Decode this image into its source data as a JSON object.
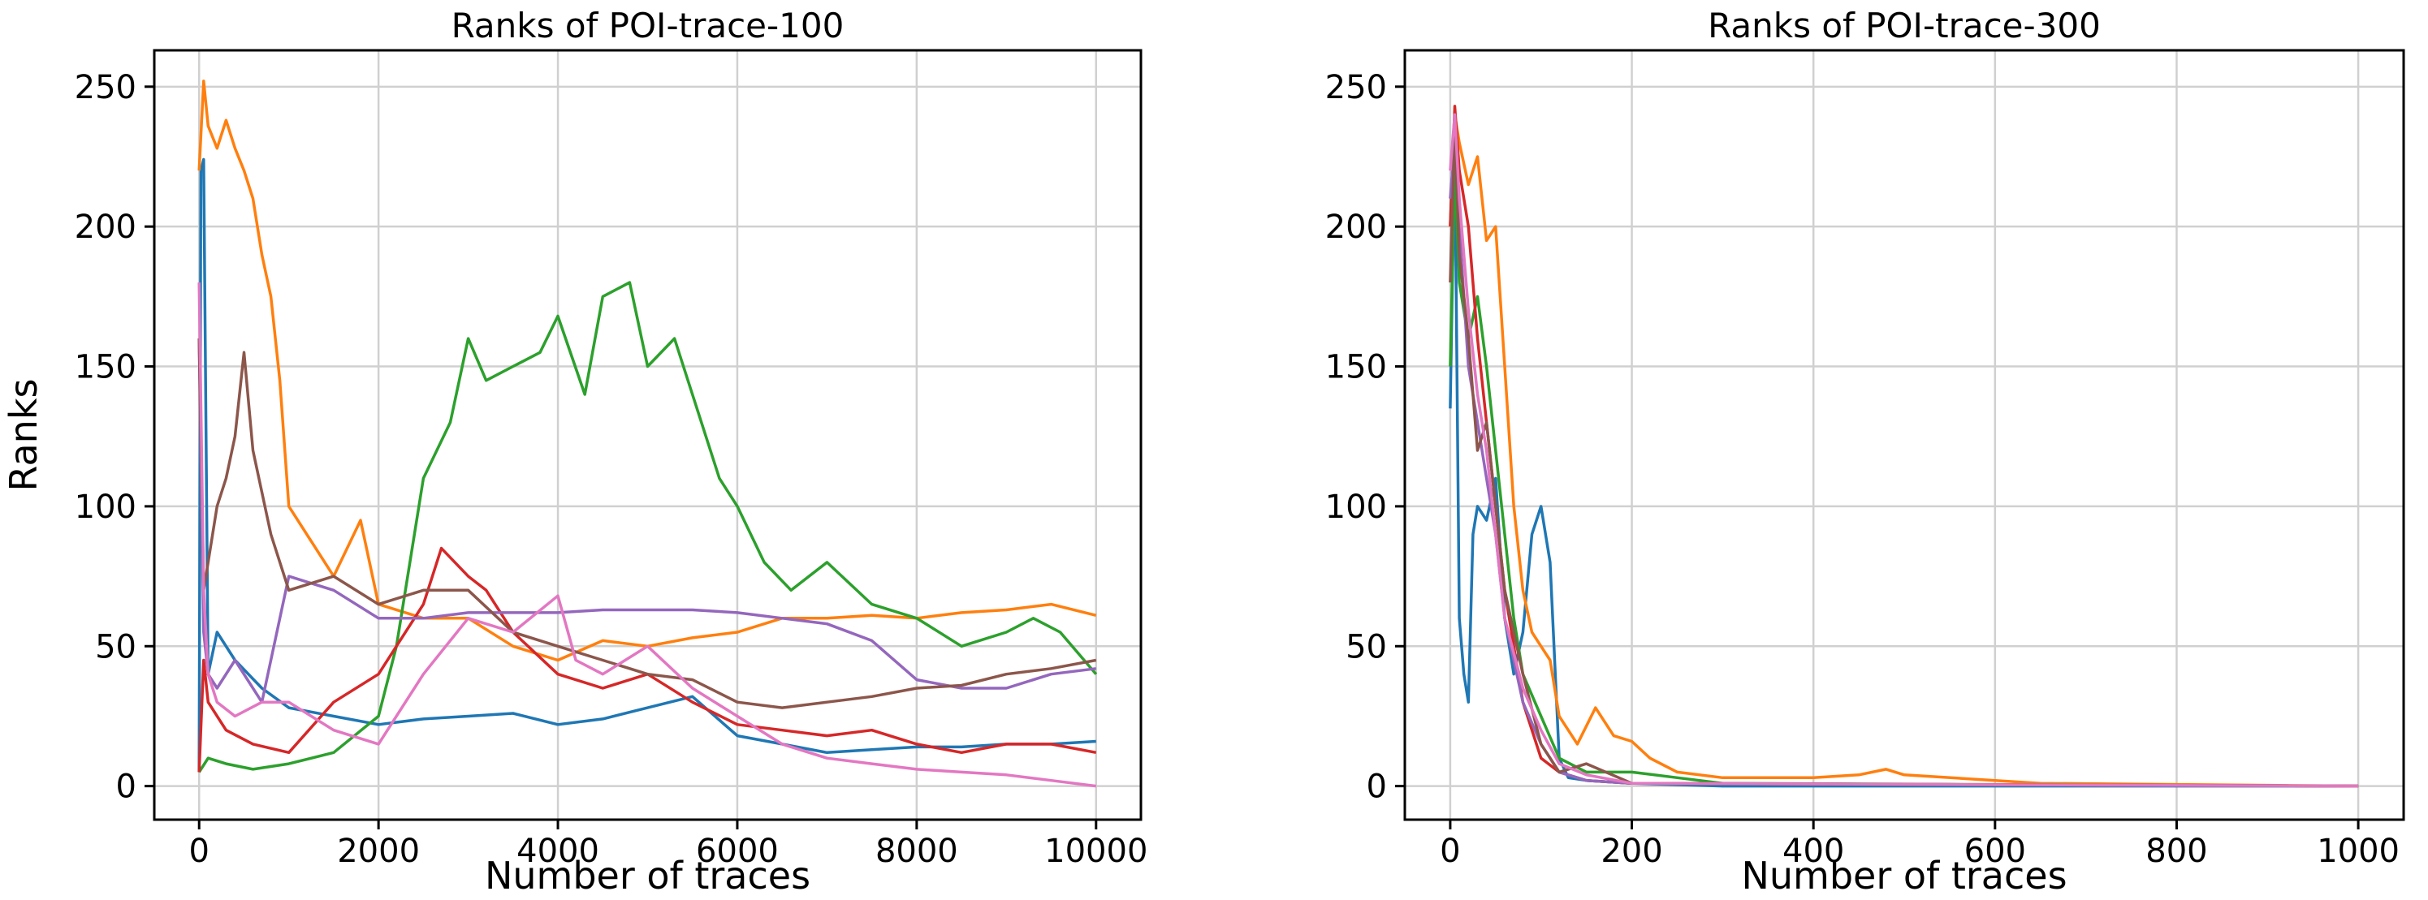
{
  "chart_data": [
    {
      "type": "line",
      "title": "Ranks of POI-trace-100",
      "xlabel": "Number of traces",
      "ylabel": "Ranks",
      "xlim": [
        -500,
        10500
      ],
      "ylim": [
        -12,
        263
      ],
      "xticks": [
        0,
        2000,
        4000,
        6000,
        8000,
        10000
      ],
      "yticks": [
        0,
        50,
        100,
        150,
        200,
        250
      ],
      "grid": true,
      "series": [
        {
          "color": "#1f77b4",
          "x": [
            0,
            20,
            50,
            100,
            200,
            400,
            700,
            1000,
            1500,
            2000,
            2500,
            3000,
            3500,
            4000,
            4500,
            5000,
            5500,
            6000,
            6500,
            7000,
            7500,
            8000,
            8500,
            9000,
            9500,
            10000
          ],
          "y": [
            5,
            220,
            224,
            40,
            55,
            45,
            35,
            28,
            25,
            22,
            24,
            25,
            26,
            22,
            24,
            28,
            32,
            18,
            15,
            12,
            13,
            14,
            14,
            15,
            15,
            16
          ]
        },
        {
          "color": "#ff7f0e",
          "x": [
            0,
            50,
            100,
            200,
            300,
            400,
            500,
            600,
            700,
            800,
            900,
            1000,
            1200,
            1500,
            1800,
            2000,
            2500,
            3000,
            3500,
            4000,
            4500,
            5000,
            5500,
            6000,
            6500,
            7000,
            7500,
            8000,
            8500,
            9000,
            9500,
            10000
          ],
          "y": [
            220,
            252,
            236,
            228,
            238,
            228,
            220,
            210,
            190,
            175,
            145,
            100,
            90,
            75,
            95,
            65,
            60,
            60,
            50,
            45,
            52,
            50,
            53,
            55,
            60,
            60,
            61,
            60,
            62,
            63,
            65,
            61
          ]
        },
        {
          "color": "#2ca02c",
          "x": [
            0,
            100,
            300,
            600,
            1000,
            1500,
            2000,
            2200,
            2500,
            2800,
            3000,
            3200,
            3500,
            3800,
            4000,
            4300,
            4500,
            4800,
            5000,
            5300,
            5500,
            5800,
            6000,
            6300,
            6600,
            7000,
            7500,
            8000,
            8500,
            9000,
            9300,
            9600,
            10000
          ],
          "y": [
            5,
            10,
            8,
            6,
            8,
            12,
            25,
            50,
            110,
            130,
            160,
            145,
            150,
            155,
            168,
            140,
            175,
            180,
            150,
            160,
            140,
            110,
            100,
            80,
            70,
            80,
            65,
            60,
            50,
            55,
            60,
            55,
            40
          ]
        },
        {
          "color": "#d62728",
          "x": [
            0,
            50,
            100,
            300,
            600,
            1000,
            1500,
            2000,
            2500,
            2700,
            3000,
            3200,
            3500,
            4000,
            4500,
            5000,
            5500,
            6000,
            6500,
            7000,
            7500,
            8000,
            8500,
            9000,
            9500,
            10000
          ],
          "y": [
            5,
            45,
            30,
            20,
            15,
            12,
            30,
            40,
            65,
            85,
            75,
            70,
            55,
            40,
            35,
            40,
            30,
            22,
            20,
            18,
            20,
            15,
            12,
            15,
            15,
            12
          ]
        },
        {
          "color": "#9467bd",
          "x": [
            0,
            50,
            100,
            200,
            400,
            700,
            1000,
            1500,
            2000,
            2500,
            3000,
            3500,
            4000,
            4500,
            5000,
            5500,
            6000,
            6500,
            7000,
            7500,
            8000,
            8500,
            9000,
            9500,
            10000
          ],
          "y": [
            160,
            55,
            40,
            35,
            45,
            30,
            75,
            70,
            60,
            60,
            62,
            62,
            62,
            63,
            63,
            63,
            62,
            60,
            58,
            52,
            38,
            35,
            35,
            40,
            42
          ]
        },
        {
          "color": "#8c564b",
          "x": [
            0,
            50,
            100,
            200,
            300,
            400,
            500,
            600,
            800,
            1000,
            1500,
            2000,
            2500,
            3000,
            3500,
            4000,
            4500,
            5000,
            5500,
            6000,
            6500,
            7000,
            7500,
            8000,
            8500,
            9000,
            9500,
            10000
          ],
          "y": [
            160,
            70,
            80,
            100,
            110,
            125,
            155,
            120,
            90,
            70,
            75,
            65,
            70,
            70,
            55,
            50,
            45,
            40,
            38,
            30,
            28,
            30,
            32,
            35,
            36,
            40,
            42,
            45
          ]
        },
        {
          "color": "#e377c2",
          "x": [
            0,
            50,
            100,
            200,
            400,
            700,
            1000,
            1500,
            2000,
            2500,
            3000,
            3500,
            4000,
            4200,
            4500,
            5000,
            5500,
            6000,
            6500,
            7000,
            7500,
            8000,
            8500,
            9000,
            9500,
            10000
          ],
          "y": [
            180,
            70,
            40,
            30,
            25,
            30,
            30,
            20,
            15,
            40,
            60,
            55,
            68,
            45,
            40,
            50,
            35,
            25,
            15,
            10,
            8,
            6,
            5,
            4,
            2,
            0
          ]
        }
      ]
    },
    {
      "type": "line",
      "title": "Ranks of POI-trace-300",
      "xlabel": "Number of traces",
      "ylabel": "",
      "xlim": [
        -50,
        1050
      ],
      "ylim": [
        -12,
        263
      ],
      "xticks": [
        0,
        200,
        400,
        600,
        800,
        1000
      ],
      "yticks": [
        0,
        50,
        100,
        150,
        200,
        250
      ],
      "grid": true,
      "series": [
        {
          "color": "#1f77b4",
          "x": [
            0,
            5,
            10,
            15,
            20,
            25,
            30,
            40,
            50,
            60,
            70,
            80,
            90,
            100,
            110,
            120,
            130,
            150,
            200,
            300,
            1000
          ],
          "y": [
            135,
            230,
            60,
            40,
            30,
            90,
            100,
            95,
            110,
            60,
            40,
            55,
            90,
            100,
            80,
            10,
            3,
            2,
            1,
            0,
            0
          ]
        },
        {
          "color": "#ff7f0e",
          "x": [
            0,
            5,
            10,
            20,
            30,
            40,
            50,
            60,
            70,
            80,
            90,
            100,
            110,
            120,
            140,
            160,
            180,
            200,
            220,
            250,
            300,
            400,
            450,
            480,
            500,
            600,
            650,
            1000
          ],
          "y": [
            200,
            240,
            230,
            215,
            225,
            195,
            200,
            150,
            100,
            70,
            55,
            50,
            45,
            25,
            15,
            28,
            18,
            16,
            10,
            5,
            3,
            3,
            4,
            6,
            4,
            2,
            1,
            0
          ]
        },
        {
          "color": "#2ca02c",
          "x": [
            0,
            5,
            10,
            20,
            30,
            40,
            50,
            60,
            70,
            80,
            100,
            120,
            150,
            200,
            250,
            300,
            1000
          ],
          "y": [
            150,
            220,
            180,
            160,
            175,
            150,
            120,
            90,
            60,
            40,
            25,
            10,
            5,
            5,
            3,
            1,
            0
          ]
        },
        {
          "color": "#d62728",
          "x": [
            0,
            5,
            10,
            20,
            30,
            40,
            50,
            60,
            70,
            80,
            100,
            120,
            150,
            200,
            1000
          ],
          "y": [
            200,
            243,
            220,
            200,
            160,
            130,
            100,
            70,
            50,
            30,
            10,
            5,
            2,
            1,
            0
          ]
        },
        {
          "color": "#9467bd",
          "x": [
            0,
            5,
            10,
            20,
            30,
            40,
            50,
            60,
            80,
            100,
            120,
            150,
            200,
            1000
          ],
          "y": [
            210,
            230,
            200,
            150,
            130,
            110,
            90,
            60,
            30,
            15,
            5,
            2,
            1,
            0
          ]
        },
        {
          "color": "#8c564b",
          "x": [
            0,
            5,
            10,
            20,
            30,
            40,
            50,
            60,
            80,
            100,
            120,
            150,
            200,
            1000
          ],
          "y": [
            180,
            235,
            190,
            160,
            120,
            130,
            100,
            70,
            40,
            15,
            5,
            8,
            1,
            0
          ]
        },
        {
          "color": "#e377c2",
          "x": [
            0,
            5,
            10,
            20,
            30,
            40,
            50,
            60,
            80,
            100,
            120,
            150,
            200,
            1000
          ],
          "y": [
            220,
            240,
            210,
            170,
            140,
            120,
            90,
            60,
            35,
            20,
            8,
            4,
            1,
            0
          ]
        }
      ]
    }
  ]
}
